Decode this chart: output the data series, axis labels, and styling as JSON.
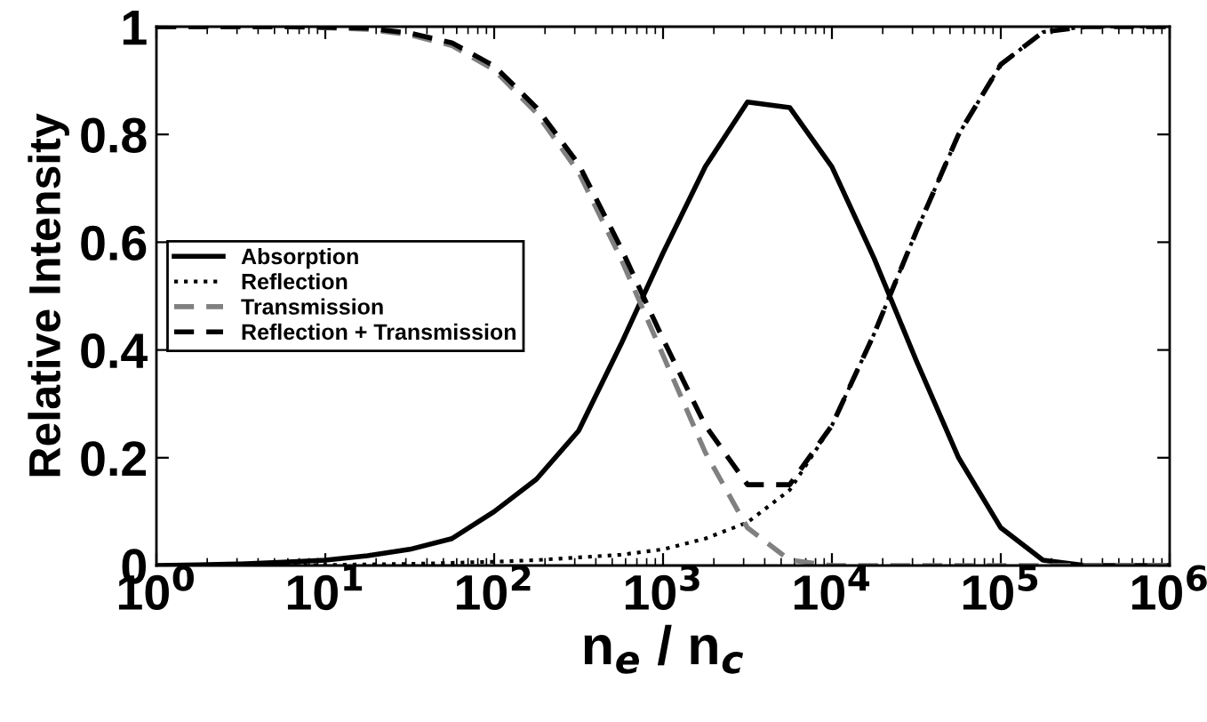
{
  "chart_data": {
    "type": "line",
    "xlabel": "n$_{e}$ / n$_{c}$",
    "ylabel": "Relative Intensity",
    "log": "x",
    "x": [
      1,
      1.778,
      3.162,
      5.623,
      10,
      17.78,
      31.62,
      56.23,
      100,
      177.8,
      316.2,
      562.3,
      1000,
      1778,
      3162,
      5623,
      10000,
      17780,
      31620,
      56230,
      100000,
      177800,
      316200,
      562300,
      1000000
    ],
    "series": [
      {
        "name": "Absorption",
        "color": "#000000",
        "line_style": "solid",
        "values": [
          0,
          0.001,
          0.003,
          0.006,
          0.01,
          0.018,
          0.03,
          0.05,
          0.1,
          0.16,
          0.25,
          0.41,
          0.58,
          0.74,
          0.86,
          0.85,
          0.74,
          0.57,
          0.38,
          0.2,
          0.07,
          0.01,
          0,
          0,
          0
        ]
      },
      {
        "name": "Reflection",
        "color": "#000000",
        "line_style": "dotted",
        "values": [
          0,
          0,
          0,
          0,
          0.001,
          0.002,
          0.003,
          0.005,
          0.007,
          0.01,
          0.015,
          0.02,
          0.03,
          0.05,
          0.08,
          0.14,
          0.26,
          0.43,
          0.62,
          0.8,
          0.93,
          0.99,
          1,
          1,
          1
        ]
      },
      {
        "name": "Transmission",
        "color": "#808080",
        "line_style": "dashed",
        "values": [
          1,
          1,
          1,
          1,
          0.998,
          0.995,
          0.985,
          0.965,
          0.92,
          0.84,
          0.73,
          0.57,
          0.39,
          0.21,
          0.07,
          0.01,
          0,
          0,
          0,
          0,
          0,
          0,
          0,
          0,
          0
        ]
      },
      {
        "name": "Reflection + Transmission",
        "color": "#000000",
        "line_style": "dashed",
        "values": [
          1,
          1,
          1,
          1,
          0.999,
          0.997,
          0.988,
          0.97,
          0.927,
          0.85,
          0.745,
          0.59,
          0.42,
          0.26,
          0.15,
          0.15,
          0.26,
          0.43,
          0.62,
          0.8,
          0.93,
          0.99,
          1,
          1,
          1
        ]
      }
    ],
    "xlim": [
      1,
      1000000
    ],
    "xticks": [
      {
        "value": 1,
        "label": "10$^{0}$"
      },
      {
        "value": 10,
        "label": "10$^{1}$"
      },
      {
        "value": 100,
        "label": "10$^{2}$"
      },
      {
        "value": 1000,
        "label": "10$^{3}$"
      },
      {
        "value": 10000,
        "label": "10$^{4}$"
      },
      {
        "value": 100000,
        "label": "10$^{5}$"
      },
      {
        "value": 1000000,
        "label": "10$^{6}$"
      }
    ],
    "ylim": [
      0,
      1
    ],
    "yticks": [
      0,
      0.2,
      0.4,
      0.6,
      0.8,
      1
    ],
    "grid": false,
    "legend": "left",
    "marker": "none"
  }
}
